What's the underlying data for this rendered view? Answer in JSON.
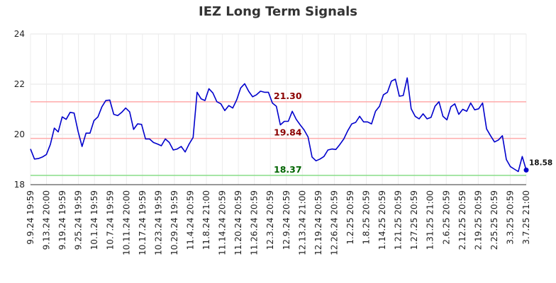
{
  "chart_data": {
    "type": "line",
    "title": "IEZ Long Term Signals",
    "ylim": [
      18,
      24
    ],
    "yticks": [
      "18",
      "20",
      "22",
      "24"
    ],
    "grid": true,
    "colors": {
      "line": "#0000cc",
      "resistance": "#ffaaaa",
      "support": "#88dd88",
      "resistance_label": "#8b0000",
      "support_label": "#006400",
      "last_point": "#0000cc"
    },
    "x_tick_labels": [
      "9.9.24 19:59",
      "9.13.24 20:00",
      "9.19.24 19:59",
      "9.25.24 19:59",
      "10.1.24 19:59",
      "10.7.24 19:59",
      "10.11.24 20:00",
      "10.17.24 19:59",
      "10.23.24 19:59",
      "10.29.24 19:59",
      "11.4.24 20:59",
      "11.8.24 21:00",
      "11.14.24 20:59",
      "11.20.24 20:59",
      "11.26.24 20:59",
      "12.3.24 20:59",
      "12.9.24 20:59",
      "12.13.24 21:00",
      "12.19.24 20:59",
      "12.26.24 20:59",
      "1.2.25 20:59",
      "1.8.25 20:59",
      "1.14.25 20:59",
      "1.21.25 20:59",
      "1.27.25 20:59",
      "1.31.25 21:00",
      "2.6.25 20:59",
      "2.12.25 20:59",
      "2.19.25 20:59",
      "2.25.25 20:59",
      "3.3.25 20:59",
      "3.7.25 21:00"
    ],
    "series": [
      {
        "values": [
          19.42,
          19.02,
          19.04,
          19.1,
          19.2,
          19.6,
          20.25,
          20.1,
          20.7,
          20.6,
          20.88,
          20.85,
          20.12,
          19.52,
          20.05,
          20.05,
          20.55,
          20.7,
          21.1,
          21.35,
          21.37,
          20.8,
          20.75,
          20.88,
          21.05,
          20.9,
          20.2,
          20.42,
          20.4,
          19.82,
          19.82,
          19.68,
          19.62,
          19.55,
          19.82,
          19.68,
          19.38,
          19.42,
          19.52,
          19.3,
          19.62,
          19.88,
          21.68,
          21.42,
          21.35,
          21.82,
          21.65,
          21.3,
          21.22,
          20.95,
          21.15,
          21.05,
          21.38,
          21.85,
          22.02,
          21.72,
          21.5,
          21.58,
          21.72,
          21.68,
          21.68,
          21.25,
          21.12,
          20.38,
          20.52,
          20.52,
          20.92,
          20.6,
          20.38,
          20.18,
          19.9,
          19.1,
          18.95,
          19.02,
          19.12,
          19.38,
          19.42,
          19.4,
          19.6,
          19.82,
          20.15,
          20.42,
          20.48,
          20.72,
          20.5,
          20.5,
          20.42,
          20.92,
          21.12,
          21.58,
          21.68,
          22.12,
          22.2,
          21.52,
          21.55,
          22.25,
          21.02,
          20.72,
          20.62,
          20.82,
          20.62,
          20.68,
          21.12,
          21.3,
          20.72,
          20.58,
          21.1,
          21.22,
          20.8,
          21.0,
          20.92,
          21.25,
          20.98,
          21.02,
          21.25,
          20.22,
          19.95,
          19.7,
          19.78,
          19.95,
          19.0,
          18.72,
          18.62,
          18.52,
          19.12,
          18.58
        ]
      }
    ],
    "levels": [
      {
        "value": 21.3,
        "label": "21.30",
        "kind": "resistance"
      },
      {
        "value": 19.84,
        "label": "19.84",
        "kind": "resistance"
      },
      {
        "value": 18.37,
        "label": "18.37",
        "kind": "support"
      }
    ],
    "last_value_label": "18.58"
  }
}
